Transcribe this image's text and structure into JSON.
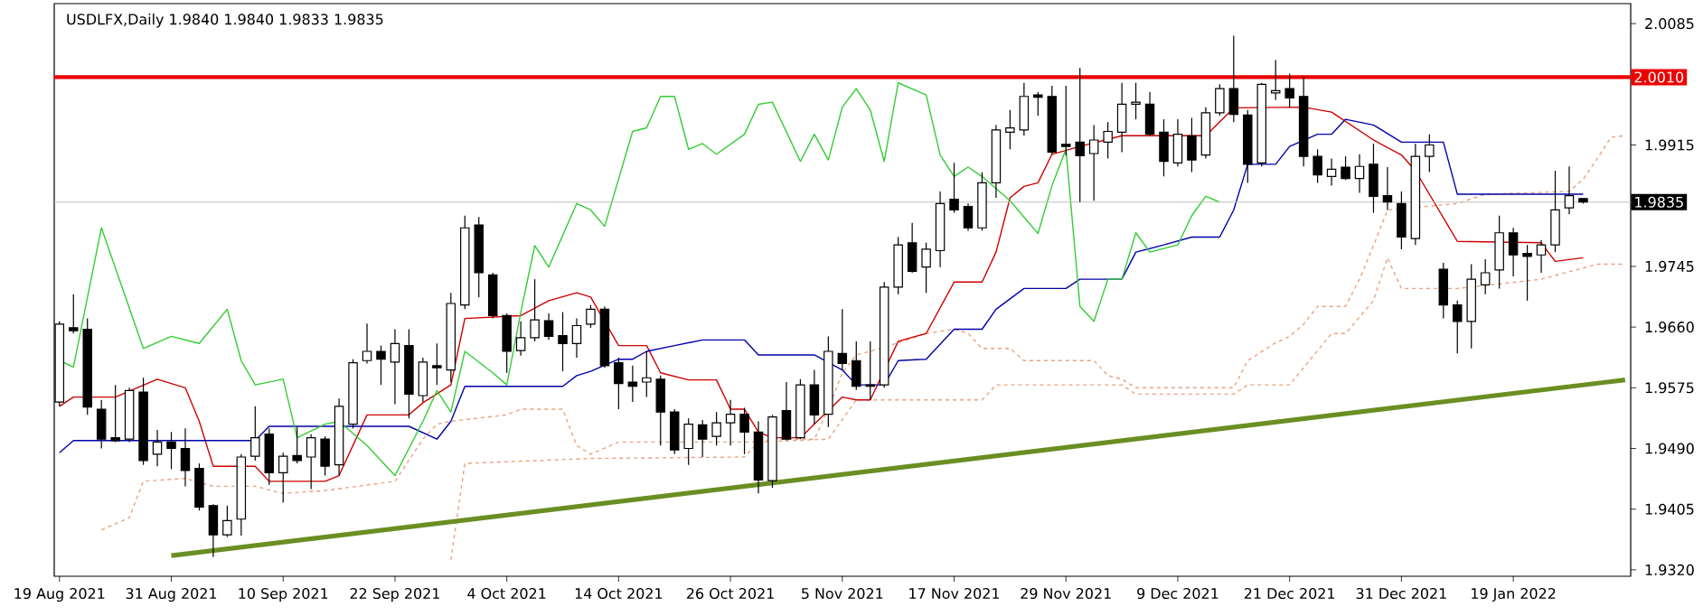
{
  "chart_data": {
    "type": "candlestick",
    "title": "USDLFX,Daily  1.9840 1.9840 1.9833 1.9835",
    "categories": [
      "19 Aug 2021",
      null,
      null,
      null,
      null,
      null,
      null,
      null,
      "31 Aug 2021",
      null,
      null,
      null,
      null,
      null,
      null,
      null,
      "10 Sep 2021",
      null,
      null,
      null,
      null,
      null,
      null,
      null,
      "22 Sep 2021",
      null,
      null,
      null,
      null,
      null,
      null,
      null,
      "4 Oct 2021",
      null,
      null,
      null,
      null,
      null,
      null,
      null,
      "14 Oct 2021",
      null,
      null,
      null,
      null,
      null,
      null,
      null,
      "26 Oct 2021",
      null,
      null,
      null,
      null,
      null,
      null,
      null,
      "5 Nov 2021",
      null,
      null,
      null,
      null,
      null,
      null,
      null,
      "17 Nov 2021",
      null,
      null,
      null,
      null,
      null,
      null,
      null,
      "29 Nov 2021",
      null,
      null,
      null,
      null,
      null,
      null,
      null,
      "9 Dec 2021",
      null,
      null,
      null,
      null,
      null,
      null,
      null,
      "21 Dec 2021",
      null,
      null,
      null,
      null,
      null,
      null,
      null,
      "31 Dec 2021",
      null,
      null,
      null,
      null,
      null,
      null,
      null,
      "19 Jan 2022",
      null,
      null,
      null,
      null,
      null,
      null,
      null,
      null
    ],
    "ohlc": [
      [
        1.9555,
        1.9668,
        1.9549,
        1.9664
      ],
      [
        1.9659,
        1.9706,
        1.9651,
        1.9655
      ],
      [
        1.9657,
        1.9672,
        1.9537,
        1.9548
      ],
      [
        1.9545,
        1.9558,
        1.949,
        1.9503
      ],
      [
        1.9505,
        1.9579,
        1.9499,
        1.9501
      ],
      [
        1.9503,
        1.9575,
        1.9499,
        1.9571
      ],
      [
        1.9569,
        1.9589,
        1.9467,
        1.9473
      ],
      [
        1.9482,
        1.9516,
        1.9465,
        1.9499
      ],
      [
        1.9499,
        1.9513,
        1.9461,
        1.949
      ],
      [
        1.949,
        1.9518,
        1.9437,
        1.9459
      ],
      [
        1.9462,
        1.9469,
        1.9403,
        1.9408
      ],
      [
        1.941,
        1.9412,
        1.9338,
        1.9369
      ],
      [
        1.9369,
        1.941,
        1.9366,
        1.9389
      ],
      [
        1.9391,
        1.9482,
        1.9368,
        1.9478
      ],
      [
        1.9479,
        1.9549,
        1.9473,
        1.9505
      ],
      [
        1.951,
        1.9518,
        1.9439,
        1.9456
      ],
      [
        1.9456,
        1.9484,
        1.9414,
        1.9479
      ],
      [
        1.948,
        1.952,
        1.9469,
        1.9473
      ],
      [
        1.9478,
        1.951,
        1.9433,
        1.9505
      ],
      [
        1.9503,
        1.9507,
        1.9452,
        1.9465
      ],
      [
        1.9467,
        1.956,
        1.9452,
        1.9549
      ],
      [
        1.9524,
        1.9615,
        1.9518,
        1.961
      ],
      [
        1.9613,
        1.9665,
        1.9609,
        1.9626
      ],
      [
        1.9626,
        1.9634,
        1.9579,
        1.9615
      ],
      [
        1.9611,
        1.9657,
        1.9552,
        1.9637
      ],
      [
        1.9634,
        1.9657,
        1.9532,
        1.9566
      ],
      [
        1.9564,
        1.9617,
        1.9555,
        1.9611
      ],
      [
        1.9606,
        1.9637,
        1.9579,
        1.9603
      ],
      [
        1.96,
        1.9708,
        1.9583,
        1.9693
      ],
      [
        1.9691,
        1.9816,
        1.9685,
        1.9799
      ],
      [
        1.9803,
        1.9814,
        1.9702,
        1.9736
      ],
      [
        1.9733,
        1.9736,
        1.9672,
        1.9676
      ],
      [
        1.9676,
        1.9679,
        1.9596,
        1.9626
      ],
      [
        1.9627,
        1.9668,
        1.962,
        1.9645
      ],
      [
        1.9645,
        1.9727,
        1.964,
        1.967
      ],
      [
        1.9669,
        1.9679,
        1.9642,
        1.9647
      ],
      [
        1.9648,
        1.9681,
        1.9598,
        1.9637
      ],
      [
        1.9637,
        1.9672,
        1.9617,
        1.9662
      ],
      [
        1.9664,
        1.9691,
        1.9659,
        1.9685
      ],
      [
        1.9685,
        1.9689,
        1.9603,
        1.9606
      ],
      [
        1.961,
        1.9617,
        1.9545,
        1.9581
      ],
      [
        1.9583,
        1.9606,
        1.9555,
        1.9577
      ],
      [
        1.9583,
        1.9626,
        1.9562,
        1.9589
      ],
      [
        1.9587,
        1.9592,
        1.9494,
        1.9541
      ],
      [
        1.9541,
        1.9545,
        1.9482,
        1.9488
      ],
      [
        1.949,
        1.9532,
        1.9467,
        1.9524
      ],
      [
        1.9523,
        1.953,
        1.9478,
        1.9503
      ],
      [
        1.9507,
        1.9541,
        1.9494,
        1.9526
      ],
      [
        1.9526,
        1.9558,
        1.9494,
        1.9538
      ],
      [
        1.9538,
        1.9547,
        1.9482,
        1.9513
      ],
      [
        1.9513,
        1.9528,
        1.9427,
        1.9446
      ],
      [
        1.9445,
        1.9537,
        1.9435,
        1.9534
      ],
      [
        1.9543,
        1.9583,
        1.9501,
        1.9503
      ],
      [
        1.9505,
        1.9587,
        1.9503,
        1.9579
      ],
      [
        1.9579,
        1.96,
        1.9524,
        1.9537
      ],
      [
        1.9538,
        1.9647,
        1.952,
        1.9626
      ],
      [
        1.9623,
        1.9685,
        1.96,
        1.9609
      ],
      [
        1.9613,
        1.964,
        1.9572,
        1.9577
      ],
      [
        1.9579,
        1.964,
        1.9558,
        1.9577
      ],
      [
        1.9579,
        1.9723,
        1.9575,
        1.9716
      ],
      [
        1.9716,
        1.9786,
        1.9706,
        1.9775
      ],
      [
        1.9778,
        1.9806,
        1.9736,
        1.9738
      ],
      [
        1.9744,
        1.9778,
        1.9708,
        1.9769
      ],
      [
        1.9767,
        1.985,
        1.9744,
        1.9833
      ],
      [
        1.9839,
        1.989,
        1.982,
        1.9824
      ],
      [
        1.9829,
        1.9833,
        1.9795,
        1.9799
      ],
      [
        1.9799,
        1.9877,
        1.9795,
        1.9862
      ],
      [
        1.9862,
        1.9943,
        1.9841,
        1.9936
      ],
      [
        1.9933,
        1.9964,
        1.9909,
        1.9939
      ],
      [
        1.9936,
        2.0002,
        1.9928,
        1.9983
      ],
      [
        1.9985,
        1.9989,
        1.9956,
        1.9982
      ],
      [
        1.9983,
        1.9998,
        1.9902,
        1.9905
      ],
      [
        1.9916,
        1.9998,
        1.99,
        1.9913
      ],
      [
        1.9919,
        2.0023,
        1.9835,
        1.99
      ],
      [
        1.9903,
        1.9943,
        1.9837,
        1.9922
      ],
      [
        1.9919,
        1.9947,
        1.9896,
        1.9934
      ],
      [
        1.9933,
        2.0002,
        1.9905,
        1.9972
      ],
      [
        1.9972,
        2.0002,
        1.9951,
        1.9975
      ],
      [
        1.9972,
        1.9989,
        1.9928,
        1.993
      ],
      [
        1.9933,
        1.9951,
        1.9871,
        1.9892
      ],
      [
        1.989,
        1.9951,
        1.9885,
        1.993
      ],
      [
        1.9928,
        1.9953,
        1.9877,
        1.9894
      ],
      [
        1.9901,
        1.9968,
        1.9896,
        1.996
      ],
      [
        1.996,
        2.0,
        1.9956,
        1.9994
      ],
      [
        1.9994,
        2.0068,
        1.9947,
        1.9958
      ],
      [
        1.9957,
        1.9964,
        1.9862,
        1.9888
      ],
      [
        1.989,
        2.0002,
        1.9885,
        2.0
      ],
      [
        1.9988,
        2.0034,
        1.9978,
        1.9991
      ],
      [
        1.9994,
        2.0015,
        1.9968,
        1.9981
      ],
      [
        1.9983,
        2.0011,
        1.9885,
        1.9899
      ],
      [
        1.9899,
        1.9909,
        1.9862,
        1.9873
      ],
      [
        1.9871,
        1.9896,
        1.9858,
        1.9881
      ],
      [
        1.9884,
        1.9899,
        1.9866,
        1.9868
      ],
      [
        1.9868,
        1.9902,
        1.9848,
        1.9885
      ],
      [
        1.9888,
        1.9917,
        1.982,
        1.9843
      ],
      [
        1.9844,
        1.9884,
        1.9824,
        1.9835
      ],
      [
        1.9833,
        1.985,
        1.9769,
        1.9786
      ],
      [
        1.9784,
        1.9917,
        1.9775,
        1.9899
      ],
      [
        1.9899,
        1.993,
        1.9877,
        1.9915
      ],
      [
        1.9741,
        1.975,
        1.9672,
        1.9691
      ],
      [
        1.9691,
        1.9697,
        1.9623,
        1.9668
      ],
      [
        1.9668,
        1.9748,
        1.963,
        1.9727
      ],
      [
        1.9719,
        1.9755,
        1.9706,
        1.9736
      ],
      [
        1.974,
        1.9816,
        1.9714,
        1.9792
      ],
      [
        1.9792,
        1.9799,
        1.9731,
        1.9761
      ],
      [
        1.9763,
        1.9775,
        1.9697,
        1.9759
      ],
      [
        1.9761,
        1.9782,
        1.9736,
        1.9775
      ],
      [
        1.9775,
        1.9879,
        1.9765,
        1.9824
      ],
      [
        1.9827,
        1.9885,
        1.9818,
        1.9844
      ],
      [
        1.984,
        1.984,
        1.9833,
        1.9835
      ],
      null,
      null,
      null
    ],
    "series": [
      {
        "type": "line",
        "color": "#e9a27c",
        "line_style": "dashed",
        "values": [
          null,
          null,
          null,
          1.9376,
          null,
          1.9393,
          1.9444,
          null,
          null,
          1.9448,
          null,
          1.9437,
          null,
          null,
          1.9437,
          null,
          1.9427,
          null,
          null,
          1.9431,
          null,
          null,
          null,
          null,
          1.9444,
          null,
          1.9503,
          1.9524,
          1.9528,
          null,
          null,
          null,
          1.9537,
          1.9545,
          null,
          null,
          1.9545,
          1.9494,
          1.9482,
          null,
          1.9499,
          null,
          null,
          null,
          null,
          null,
          null,
          null,
          null,
          null,
          1.9499,
          1.9503,
          null,
          null,
          1.9503,
          1.9545,
          1.9596,
          1.9621,
          1.9626,
          null,
          1.9638,
          null,
          1.9651,
          null,
          1.9657,
          1.9651,
          1.963,
          null,
          1.963,
          1.9613,
          null,
          null,
          null,
          null,
          1.9613,
          1.9592,
          1.9587,
          1.9575,
          null,
          null,
          null,
          null,
          null,
          null,
          1.9575,
          1.9613,
          null,
          1.9638,
          1.9647,
          1.9664,
          1.9689,
          null,
          1.9689,
          1.9727,
          1.9774,
          1.9824,
          null,
          null,
          null,
          null,
          1.9833,
          null,
          1.9846,
          null,
          null,
          null,
          null,
          null,
          1.985,
          1.9867,
          1.9896,
          1.9926,
          1.9928
        ]
      },
      {
        "type": "line",
        "color": "#e9a27c",
        "line_style": "dashed",
        "values": [
          null,
          null,
          null,
          null,
          null,
          null,
          null,
          null,
          null,
          null,
          null,
          null,
          null,
          null,
          null,
          null,
          null,
          null,
          null,
          null,
          null,
          null,
          null,
          null,
          null,
          null,
          null,
          null,
          1.9334,
          1.9469,
          null,
          null,
          null,
          null,
          null,
          null,
          null,
          null,
          1.9476,
          null,
          null,
          null,
          null,
          null,
          null,
          null,
          null,
          null,
          null,
          1.9478,
          1.9499,
          null,
          null,
          null,
          null,
          1.9503,
          null,
          1.9558,
          null,
          null,
          null,
          null,
          null,
          null,
          null,
          null,
          1.9558,
          1.9579,
          null,
          null,
          null,
          null,
          null,
          null,
          null,
          null,
          1.9579,
          1.9566,
          null,
          null,
          null,
          null,
          null,
          null,
          1.9566,
          1.9579,
          null,
          null,
          1.9579,
          null,
          null,
          1.9651,
          1.9651,
          null,
          1.9697,
          1.9757,
          1.9714,
          null,
          null,
          null,
          1.9714,
          null,
          null,
          null,
          null,
          null,
          1.9727,
          null,
          null,
          null,
          1.9748,
          null,
          1.9748
        ]
      },
      {
        "type": "line",
        "color": "#cc0000",
        "line_style": "solid",
        "values": [
          1.9549,
          1.9562,
          null,
          null,
          1.9562,
          null,
          null,
          1.9587,
          null,
          1.9575,
          1.9528,
          1.9465,
          null,
          null,
          1.9465,
          1.9444,
          null,
          null,
          null,
          1.9444,
          1.9452,
          null,
          1.9537,
          null,
          null,
          1.9537,
          1.9554,
          null,
          1.9579,
          1.9672,
          null,
          null,
          null,
          1.9676,
          null,
          1.9697,
          null,
          1.9708,
          1.9702,
          null,
          1.9634,
          null,
          1.9634,
          1.9596,
          null,
          1.9586,
          null,
          1.9586,
          1.9545,
          1.9545,
          1.9513,
          1.9505,
          null,
          1.9505,
          1.9524,
          null,
          1.9562,
          1.9558,
          1.9558,
          null,
          1.964,
          null,
          1.9651,
          null,
          1.9723,
          null,
          1.9723,
          1.9765,
          1.9841,
          1.9857,
          1.9862,
          1.9902,
          null,
          1.9913,
          null,
          null,
          1.9928,
          null,
          null,
          null,
          null,
          null,
          1.9928,
          null,
          1.9967,
          null,
          null,
          null,
          null,
          1.9968,
          null,
          1.9961,
          null,
          null,
          1.9922,
          null,
          1.9901,
          1.9879,
          null,
          null,
          1.978,
          null,
          null,
          null,
          null,
          null,
          1.9778,
          1.9752,
          null,
          1.9757,
          null,
          null,
          null
        ]
      },
      {
        "type": "line",
        "color": "#0000aa",
        "line_style": "solid",
        "values": [
          1.9484,
          1.9501,
          null,
          null,
          null,
          null,
          null,
          null,
          null,
          null,
          null,
          null,
          null,
          null,
          1.9501,
          1.9521,
          null,
          null,
          null,
          null,
          null,
          null,
          null,
          null,
          null,
          1.9521,
          null,
          1.9503,
          1.9528,
          1.9577,
          null,
          null,
          null,
          null,
          null,
          null,
          1.9577,
          1.9592,
          1.9598,
          null,
          1.9615,
          1.9615,
          1.9626,
          null,
          1.9634,
          null,
          1.9642,
          null,
          null,
          1.9642,
          1.9621,
          null,
          null,
          null,
          1.9621,
          null,
          1.96,
          1.9579,
          null,
          1.9579,
          1.9613,
          null,
          1.9615,
          null,
          1.9657,
          null,
          1.9657,
          1.9685,
          null,
          1.9714,
          null,
          null,
          1.9714,
          1.9727,
          null,
          null,
          1.9727,
          1.9765,
          null,
          1.9775,
          null,
          1.9786,
          null,
          1.9786,
          1.9824,
          1.9888,
          null,
          1.9888,
          1.9913,
          null,
          1.993,
          1.993,
          1.9951,
          null,
          1.9943,
          null,
          1.9919,
          null,
          null,
          1.9919,
          1.9846,
          null,
          null,
          null,
          null,
          null,
          null,
          null,
          null,
          1.9846,
          null,
          null,
          null
        ]
      },
      {
        "type": "line",
        "color": "#33cc33",
        "line_style": "solid",
        "values": [
          1.9613,
          1.9604,
          null,
          1.9799,
          null,
          null,
          1.963,
          null,
          1.9647,
          null,
          1.9637,
          null,
          1.9685,
          1.9613,
          1.9579,
          null,
          1.9587,
          1.9505,
          null,
          1.9524,
          1.9528,
          null,
          1.9494,
          null,
          1.9452,
          null,
          1.9528,
          1.9571,
          1.9541,
          1.9626,
          null,
          1.9596,
          1.9579,
          1.9681,
          1.9774,
          1.9744,
          null,
          1.9833,
          1.9824,
          1.9801,
          null,
          1.9934,
          1.9939,
          1.9983,
          1.9983,
          1.9909,
          1.9917,
          1.9902,
          null,
          1.993,
          1.9972,
          1.9975,
          null,
          1.9892,
          1.993,
          1.9894,
          1.9968,
          1.9994,
          1.9964,
          1.9892,
          2.0002,
          null,
          1.9985,
          1.9901,
          1.9871,
          1.9884,
          1.9871,
          null,
          1.9837,
          null,
          1.9791,
          1.9858,
          1.9909,
          1.9689,
          1.9668,
          1.9727,
          1.9727,
          1.9792,
          1.9765,
          null,
          1.9775,
          1.9816,
          1.9843,
          1.9835,
          null,
          null,
          null,
          null,
          null,
          null,
          null,
          null,
          null,
          null,
          null,
          null,
          null,
          null,
          null,
          null,
          null,
          null,
          null,
          null,
          null,
          null,
          null,
          null,
          null,
          null,
          null,
          null,
          null
        ]
      },
      {
        "type": "line",
        "color": "#6b8e23",
        "line_style": "solid",
        "values": [
          null,
          null,
          null,
          null,
          null,
          null,
          null,
          null,
          1.934,
          null,
          null,
          null,
          null,
          null,
          null,
          null,
          null,
          null,
          null,
          null,
          null,
          null,
          null,
          null,
          null,
          null,
          null,
          null,
          null,
          null,
          null,
          null,
          null,
          null,
          null,
          null,
          null,
          null,
          null,
          null,
          null,
          null,
          null,
          null,
          null,
          null,
          null,
          null,
          null,
          null,
          null,
          null,
          null,
          null,
          null,
          null,
          null,
          null,
          null,
          null,
          null,
          null,
          null,
          null,
          null,
          null,
          null,
          null,
          null,
          null,
          null,
          null,
          null,
          null,
          null,
          null,
          null,
          null,
          null,
          null,
          null,
          null,
          null,
          null,
          null,
          null,
          null,
          null,
          null,
          null,
          null,
          null,
          null,
          null,
          null,
          null,
          null,
          null,
          null,
          null,
          null,
          null,
          null,
          null,
          null,
          null,
          null,
          null,
          null,
          null,
          null,
          null,
          1.9586
        ]
      }
    ],
    "ylim": [
      1.9311,
      2.0113
    ],
    "yticks": [
      2.0085,
      1.9915,
      1.9745,
      {
        "value": 1.966,
        "label": "1.9660"
      },
      1.9575,
      {
        "value": 1.949,
        "label": "1.9490"
      },
      1.9405,
      {
        "value": 1.932,
        "label": "1.9320"
      }
    ],
    "ref_lines": [
      {
        "axis": "y",
        "value": 2.001,
        "label": "2.0010",
        "color": "#ee0000"
      },
      {
        "axis": "y",
        "value": 1.9835,
        "label": "1.9835",
        "color": "#c0c0c0"
      }
    ]
  }
}
